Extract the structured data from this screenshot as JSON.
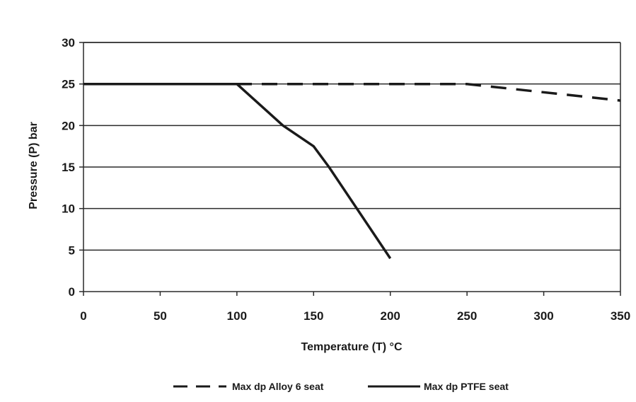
{
  "chart_data": {
    "type": "line",
    "title": "",
    "xlabel": "Temperature (T) °C",
    "ylabel": "Pressure (P) bar",
    "xlim": [
      0,
      350
    ],
    "ylim": [
      0,
      30
    ],
    "x_ticks": [
      0,
      50,
      100,
      150,
      200,
      250,
      300,
      350
    ],
    "y_ticks": [
      0,
      5,
      10,
      15,
      20,
      25,
      30
    ],
    "grid": "horizontal",
    "legend_position": "bottom",
    "series": [
      {
        "name": "Max dp Alloy 6 seat",
        "style": "dashed",
        "color": "#1a1a1a",
        "x": [
          0,
          100,
          250,
          350
        ],
        "y": [
          25,
          25,
          25,
          23
        ]
      },
      {
        "name": "Max dp PTFE seat",
        "style": "solid",
        "color": "#1a1a1a",
        "x": [
          0,
          100,
          130,
          150,
          160,
          200
        ],
        "y": [
          25,
          25,
          20,
          17.5,
          15,
          4
        ]
      }
    ]
  }
}
